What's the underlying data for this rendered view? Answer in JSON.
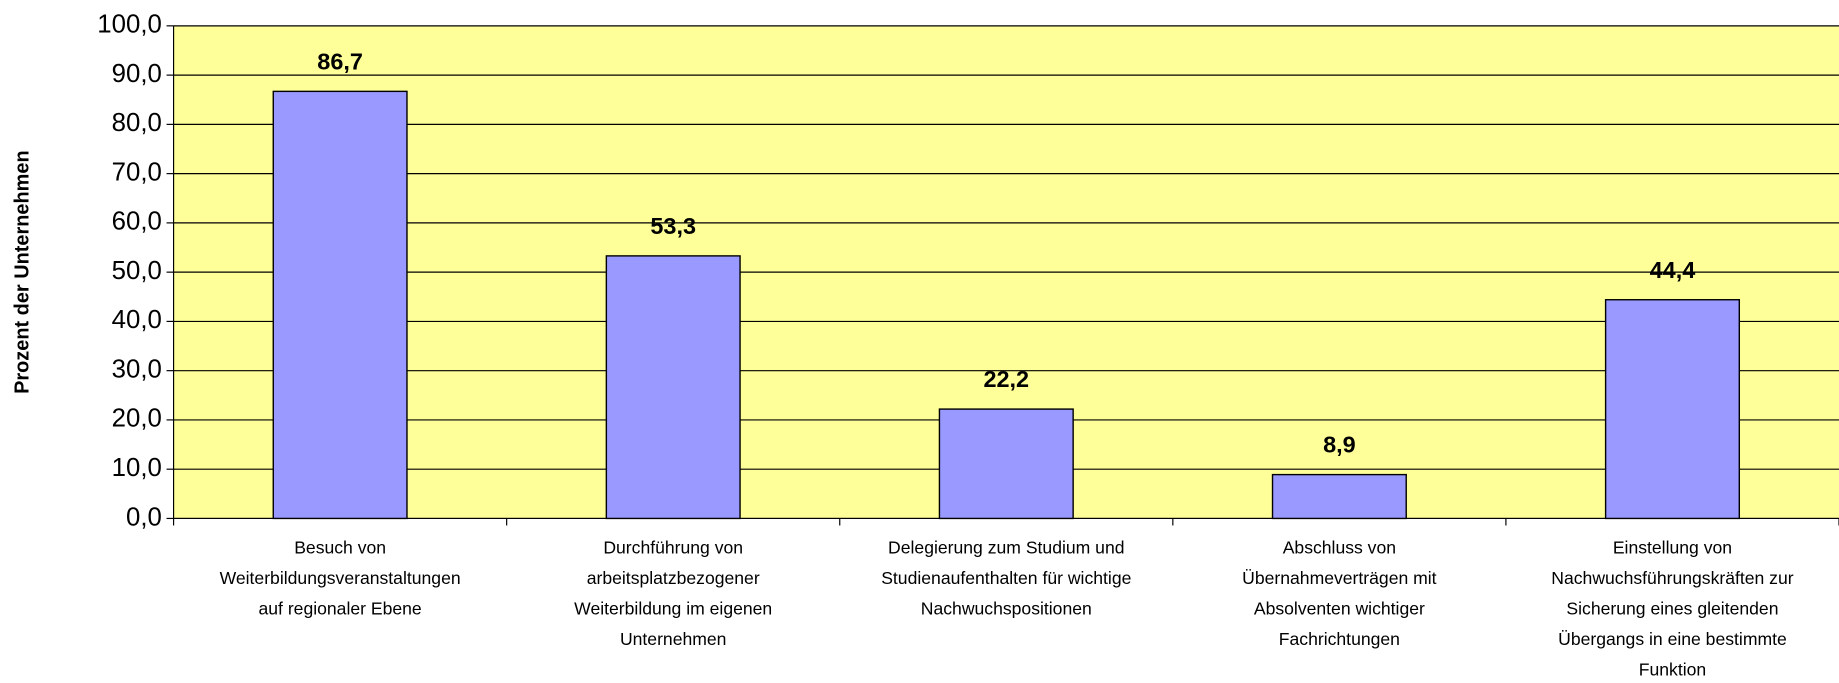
{
  "chart_data": {
    "type": "bar",
    "ylabel": "Prozent der Unternehmen",
    "categories": [
      [
        "Besuch von",
        "Weiterbildungsveranstaltungen",
        "auf regionaler Ebene"
      ],
      [
        "Durchführung von",
        "arbeitsplatzbezogener",
        "Weiterbildung im eigenen",
        "Unternehmen"
      ],
      [
        "Delegierung zum Studium und",
        "Studienaufenthalten für wichtige",
        "Nachwuchspositionen"
      ],
      [
        "Abschluss von",
        "Übernahmeverträgen mit",
        "Absolventen wichtiger",
        "Fachrichtungen"
      ],
      [
        "Einstellung von",
        "Nachwuchsführungskräften zur",
        "Sicherung eines gleitenden",
        "Übergangs in eine bestimmte",
        "Funktion"
      ]
    ],
    "values": [
      86.7,
      53.3,
      22.2,
      8.9,
      44.4
    ],
    "value_labels": [
      "86,7",
      "53,3",
      "22,2",
      "8,9",
      "44,4"
    ],
    "color": "#9999ff",
    "plot_background": "#ffff99",
    "ylim": [
      0,
      100
    ],
    "yticks": [
      {
        "value": 0,
        "label": "0,0"
      },
      {
        "value": 10,
        "label": "10,0"
      },
      {
        "value": 20,
        "label": "20,0"
      },
      {
        "value": 30,
        "label": "30,0"
      },
      {
        "value": 40,
        "label": "40,0"
      },
      {
        "value": 50,
        "label": "50,0"
      },
      {
        "value": 60,
        "label": "60,0"
      },
      {
        "value": 70,
        "label": "70,0"
      },
      {
        "value": 80,
        "label": "80,0"
      },
      {
        "value": 90,
        "label": "90,0"
      },
      {
        "value": 100,
        "label": "100,0"
      }
    ],
    "grid": true
  }
}
